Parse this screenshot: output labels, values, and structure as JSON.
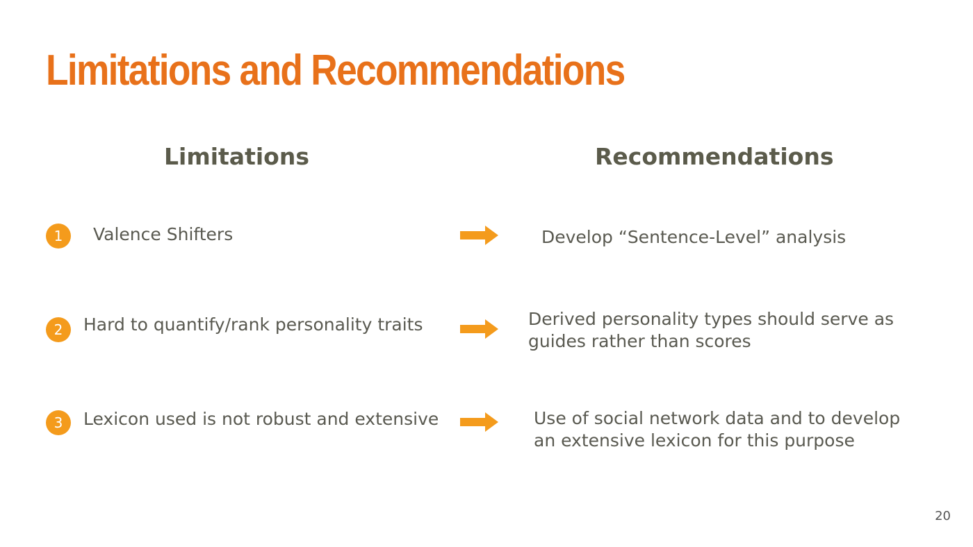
{
  "slide": {
    "title": "Limitations and Recommendations",
    "page_number": "20"
  },
  "columns": {
    "limitations_heading": "Limitations",
    "recommendations_heading": "Recommendations"
  },
  "rows": [
    {
      "number": "1",
      "limitation": "Valence Shifters",
      "recommendation_lines": [
        "Develop “Sentence-Level” analysis"
      ]
    },
    {
      "number": "2",
      "limitation": "Hard to quantify/rank personality traits",
      "recommendation_lines": [
        "Derived personality types should serve as",
        "guides rather than scores"
      ]
    },
    {
      "number": "3",
      "limitation": "Lexicon used is not robust and extensive",
      "recommendation_lines": [
        "Use of social network data and to develop",
        "an extensive lexicon for this purpose"
      ]
    }
  ],
  "colors": {
    "title": "#e8711a",
    "accent": "#f49b1c",
    "heading": "#5b5b4b",
    "text": "#595950"
  },
  "icons": {
    "arrow": "right-arrow-icon"
  }
}
